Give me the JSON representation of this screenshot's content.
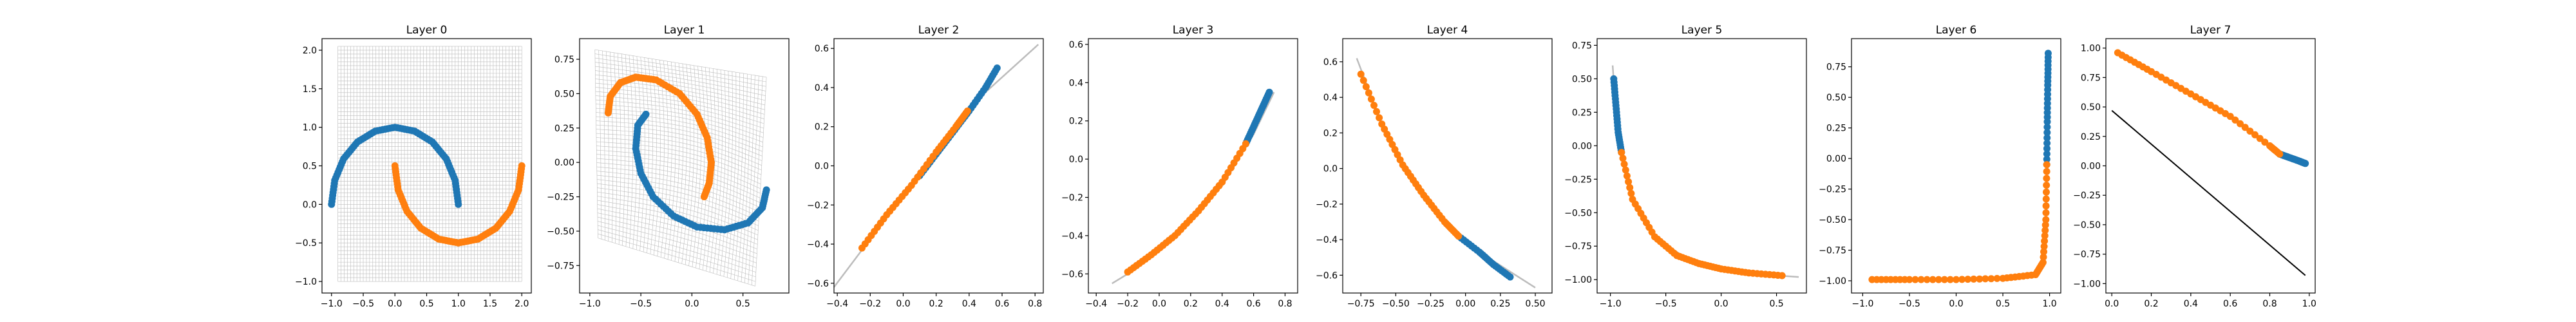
{
  "colors": {
    "series_a": "#1f77b4",
    "series_b": "#ff7f0e",
    "grid_lines": "#bcbcbc",
    "line": "#000000"
  },
  "chart_data": [
    {
      "type": "scatter",
      "title": "Layer 0",
      "xlabel": "",
      "ylabel": "",
      "xlim": [
        -1.15,
        2.15
      ],
      "ylim": [
        -1.15,
        2.15
      ],
      "xticks": [
        -1.0,
        -0.5,
        0.0,
        0.5,
        1.0,
        1.5,
        2.0
      ],
      "yticks": [
        -1.0,
        -0.5,
        0.0,
        0.5,
        1.0,
        1.5,
        2.0
      ],
      "xtick_labels": [
        "−1.0",
        "−0.5",
        "0.0",
        "0.5",
        "1.0",
        "1.5",
        "2.0"
      ],
      "ytick_labels": [
        "−1.0",
        "−0.5",
        "0.0",
        "0.5",
        "1.0",
        "1.5",
        "2.0"
      ],
      "grid_mesh": true,
      "series": [
        {
          "color": "series_a",
          "x": [
            -1.0,
            -0.95,
            -0.81,
            -0.59,
            -0.31,
            0.0,
            0.31,
            0.59,
            0.81,
            0.95,
            1.0
          ],
          "y": [
            0.0,
            0.31,
            0.59,
            0.81,
            0.95,
            1.0,
            0.95,
            0.81,
            0.59,
            0.31,
            0.0
          ]
        },
        {
          "color": "series_b",
          "x": [
            0.0,
            0.05,
            0.19,
            0.41,
            0.69,
            1.0,
            1.31,
            1.59,
            1.81,
            1.95,
            2.0
          ],
          "y": [
            0.5,
            0.19,
            -0.09,
            -0.31,
            -0.45,
            -0.5,
            -0.45,
            -0.31,
            -0.09,
            0.19,
            0.5
          ]
        }
      ]
    },
    {
      "type": "scatter",
      "title": "Layer 1",
      "xlabel": "",
      "ylabel": "",
      "xlim": [
        -1.1,
        0.95
      ],
      "ylim": [
        -0.95,
        0.9
      ],
      "xticks": [
        -1.0,
        -0.5,
        0.0,
        0.5
      ],
      "yticks": [
        -0.75,
        -0.5,
        -0.25,
        0.0,
        0.25,
        0.5,
        0.75
      ],
      "xtick_labels": [
        "−1.0",
        "−0.5",
        "0.0",
        "0.5"
      ],
      "ytick_labels": [
        "−0.75",
        "−0.50",
        "−0.25",
        "0.00",
        "0.25",
        "0.50",
        "0.75"
      ],
      "grid_mesh": true,
      "series": [
        {
          "color": "series_a",
          "x": [
            -0.45,
            -0.53,
            -0.55,
            -0.5,
            -0.38,
            -0.18,
            0.05,
            0.32,
            0.55,
            0.69,
            0.73
          ],
          "y": [
            0.35,
            0.27,
            0.1,
            -0.08,
            -0.25,
            -0.39,
            -0.47,
            -0.49,
            -0.44,
            -0.33,
            -0.2
          ]
        },
        {
          "color": "series_b",
          "x": [
            -0.82,
            -0.8,
            -0.7,
            -0.55,
            -0.35,
            -0.12,
            0.05,
            0.15,
            0.19,
            0.17,
            0.12
          ],
          "y": [
            0.36,
            0.48,
            0.58,
            0.62,
            0.6,
            0.5,
            0.35,
            0.18,
            0.0,
            -0.15,
            -0.25
          ]
        }
      ]
    },
    {
      "type": "scatter",
      "title": "Layer 2",
      "xlabel": "",
      "ylabel": "",
      "xlim": [
        -0.42,
        0.85
      ],
      "ylim": [
        -0.65,
        0.65
      ],
      "xticks": [
        -0.4,
        -0.2,
        0.0,
        0.2,
        0.4,
        0.6,
        0.8
      ],
      "yticks": [
        -0.6,
        -0.4,
        -0.2,
        0.0,
        0.2,
        0.4,
        0.6
      ],
      "xtick_labels": [
        "−0.4",
        "−0.2",
        "0.0",
        "0.2",
        "0.4",
        "0.6",
        "0.8"
      ],
      "ytick_labels": [
        "−0.6",
        "−0.4",
        "−0.2",
        "0.0",
        "0.2",
        "0.4",
        "0.6"
      ],
      "grid_mesh": false,
      "series": [
        {
          "color": "series_a",
          "x": [
            0.1,
            0.2,
            0.3,
            0.4,
            0.5,
            0.57
          ],
          "y": [
            -0.05,
            0.06,
            0.17,
            0.28,
            0.4,
            0.5
          ]
        },
        {
          "color": "series_b",
          "x": [
            -0.25,
            -0.1,
            0.05,
            0.2,
            0.32,
            0.39
          ],
          "y": [
            -0.42,
            -0.25,
            -0.1,
            0.07,
            0.2,
            0.28
          ]
        }
      ],
      "line_series": [
        {
          "color": "grid_lines",
          "x": [
            -0.42,
            0.0,
            0.4,
            0.82
          ],
          "y": [
            -0.62,
            -0.15,
            0.3,
            0.62
          ]
        }
      ]
    },
    {
      "type": "scatter",
      "title": "Layer 3",
      "xlabel": "",
      "ylabel": "",
      "xlim": [
        -0.45,
        0.88
      ],
      "ylim": [
        -0.7,
        0.63
      ],
      "xticks": [
        -0.4,
        -0.2,
        0.0,
        0.2,
        0.4,
        0.6,
        0.8
      ],
      "yticks": [
        -0.6,
        -0.4,
        -0.2,
        0.0,
        0.2,
        0.4,
        0.6
      ],
      "xtick_labels": [
        "−0.4",
        "−0.2",
        "0.0",
        "0.2",
        "0.4",
        "0.6",
        "0.8"
      ],
      "ytick_labels": [
        "−0.6",
        "−0.4",
        "−0.2",
        "0.0",
        "0.2",
        "0.4",
        "0.6"
      ],
      "grid_mesh": false,
      "series": [
        {
          "color": "series_a",
          "x": [
            0.55,
            0.6,
            0.65,
            0.7
          ],
          "y": [
            0.08,
            0.17,
            0.26,
            0.35
          ]
        },
        {
          "color": "series_b",
          "x": [
            -0.2,
            -0.05,
            0.1,
            0.25,
            0.4,
            0.55
          ],
          "y": [
            -0.59,
            -0.5,
            -0.4,
            -0.27,
            -0.12,
            0.08
          ]
        }
      ],
      "line_series": [
        {
          "color": "grid_lines",
          "x": [
            -0.3,
            -0.2,
            0.0,
            0.2,
            0.4,
            0.6,
            0.73
          ],
          "y": [
            -0.65,
            -0.6,
            -0.47,
            -0.32,
            -0.14,
            0.13,
            0.35
          ]
        }
      ]
    },
    {
      "type": "scatter",
      "title": "Layer 4",
      "xlabel": "",
      "ylabel": "",
      "xlim": [
        -0.88,
        0.62
      ],
      "ylim": [
        -0.7,
        0.73
      ],
      "xticks": [
        -0.75,
        -0.5,
        -0.25,
        0.0,
        0.25,
        0.5
      ],
      "yticks": [
        -0.6,
        -0.4,
        -0.2,
        0.0,
        0.2,
        0.4,
        0.6
      ],
      "xtick_labels": [
        "−0.75",
        "−0.50",
        "−0.25",
        "0.00",
        "0.25",
        "0.50"
      ],
      "ytick_labels": [
        "−0.6",
        "−0.4",
        "−0.2",
        "0.0",
        "0.2",
        "0.4",
        "0.6"
      ],
      "grid_mesh": false,
      "series": [
        {
          "color": "series_a",
          "x": [
            -0.05,
            0.1,
            0.2,
            0.32
          ],
          "y": [
            -0.38,
            -0.47,
            -0.54,
            -0.61
          ]
        },
        {
          "color": "series_b",
          "x": [
            -0.75,
            -0.6,
            -0.45,
            -0.3,
            -0.15,
            -0.05
          ],
          "y": [
            0.53,
            0.25,
            0.02,
            -0.15,
            -0.3,
            -0.38
          ]
        }
      ],
      "line_series": [
        {
          "color": "grid_lines",
          "x": [
            -0.78,
            -0.6,
            -0.4,
            -0.2,
            0.0,
            0.2,
            0.5
          ],
          "y": [
            0.62,
            0.25,
            -0.04,
            -0.25,
            -0.4,
            -0.52,
            -0.67
          ]
        }
      ]
    },
    {
      "type": "scatter",
      "title": "Layer 5",
      "xlabel": "",
      "ylabel": "",
      "xlim": [
        -1.12,
        0.77
      ],
      "ylim": [
        -1.1,
        0.8
      ],
      "xticks": [
        -1.0,
        -0.5,
        0.0,
        0.5
      ],
      "yticks": [
        -1.0,
        -0.75,
        -0.5,
        -0.25,
        0.0,
        0.25,
        0.5,
        0.75
      ],
      "xtick_labels": [
        "−1.0",
        "−0.5",
        "0.0",
        "0.5"
      ],
      "ytick_labels": [
        "−1.00",
        "−0.75",
        "−0.50",
        "−0.25",
        "0.00",
        "0.25",
        "0.50",
        "0.75"
      ],
      "grid_mesh": false,
      "series": [
        {
          "color": "series_a",
          "x": [
            -0.97,
            -0.95,
            -0.93,
            -0.9
          ],
          "y": [
            0.5,
            0.3,
            0.1,
            -0.05
          ]
        },
        {
          "color": "series_b",
          "x": [
            -0.9,
            -0.8,
            -0.6,
            -0.4,
            -0.2,
            0.0,
            0.25,
            0.55
          ],
          "y": [
            -0.05,
            -0.4,
            -0.68,
            -0.82,
            -0.88,
            -0.92,
            -0.95,
            -0.97
          ]
        }
      ],
      "line_series": [
        {
          "color": "grid_lines",
          "x": [
            -0.98,
            -0.95,
            -0.9,
            -0.8,
            -0.6,
            -0.3,
            0.0,
            0.35,
            0.7
          ],
          "y": [
            0.6,
            0.25,
            -0.05,
            -0.4,
            -0.68,
            -0.85,
            -0.92,
            -0.96,
            -0.98
          ]
        }
      ]
    },
    {
      "type": "scatter",
      "title": "Layer 6",
      "xlabel": "",
      "ylabel": "",
      "xlim": [
        -1.12,
        1.12
      ],
      "ylim": [
        -1.1,
        0.98
      ],
      "xticks": [
        -1.0,
        -0.5,
        0.0,
        0.5,
        1.0
      ],
      "yticks": [
        -1.0,
        -0.75,
        -0.5,
        -0.25,
        0.0,
        0.25,
        0.5,
        0.75
      ],
      "xtick_labels": [
        "−1.0",
        "−0.5",
        "0.0",
        "0.5",
        "1.0"
      ],
      "ytick_labels": [
        "−1.00",
        "−0.75",
        "−0.50",
        "−0.25",
        "0.00",
        "0.25",
        "0.50",
        "0.75"
      ],
      "grid_mesh": false,
      "series": [
        {
          "color": "series_a",
          "x": [
            0.97,
            0.975,
            0.98,
            0.985
          ],
          "y": [
            -0.05,
            0.3,
            0.6,
            0.86
          ]
        },
        {
          "color": "series_b",
          "x": [
            -0.9,
            -0.5,
            0.0,
            0.5,
            0.85,
            0.93,
            0.96,
            0.97
          ],
          "y": [
            -0.99,
            -0.99,
            -0.99,
            -0.98,
            -0.95,
            -0.85,
            -0.5,
            -0.05
          ]
        }
      ],
      "line_series": []
    },
    {
      "type": "scatter",
      "title": "Layer 7",
      "xlabel": "",
      "ylabel": "",
      "xlim": [
        -0.03,
        1.03
      ],
      "ylim": [
        -1.08,
        1.08
      ],
      "xticks": [
        0.0,
        0.2,
        0.4,
        0.6,
        0.8,
        1.0
      ],
      "yticks": [
        -1.0,
        -0.75,
        -0.5,
        -0.25,
        0.0,
        0.25,
        0.5,
        0.75,
        1.0
      ],
      "xtick_labels": [
        "0.0",
        "0.2",
        "0.4",
        "0.6",
        "0.8",
        "1.0"
      ],
      "ytick_labels": [
        "−1.00",
        "−0.75",
        "−0.50",
        "−0.25",
        "0.00",
        "0.25",
        "0.50",
        "0.75",
        "1.00"
      ],
      "grid_mesh": false,
      "series": [
        {
          "color": "series_a",
          "x": [
            0.85,
            0.9,
            0.95,
            0.98
          ],
          "y": [
            0.1,
            0.07,
            0.04,
            0.02
          ]
        },
        {
          "color": "series_b",
          "x": [
            0.03,
            0.2,
            0.4,
            0.6,
            0.8,
            0.85
          ],
          "y": [
            0.96,
            0.8,
            0.61,
            0.42,
            0.17,
            0.1
          ]
        }
      ],
      "line_series": [
        {
          "color": "line",
          "x": [
            0.0,
            0.98
          ],
          "y": [
            0.47,
            -0.93
          ]
        }
      ]
    }
  ]
}
